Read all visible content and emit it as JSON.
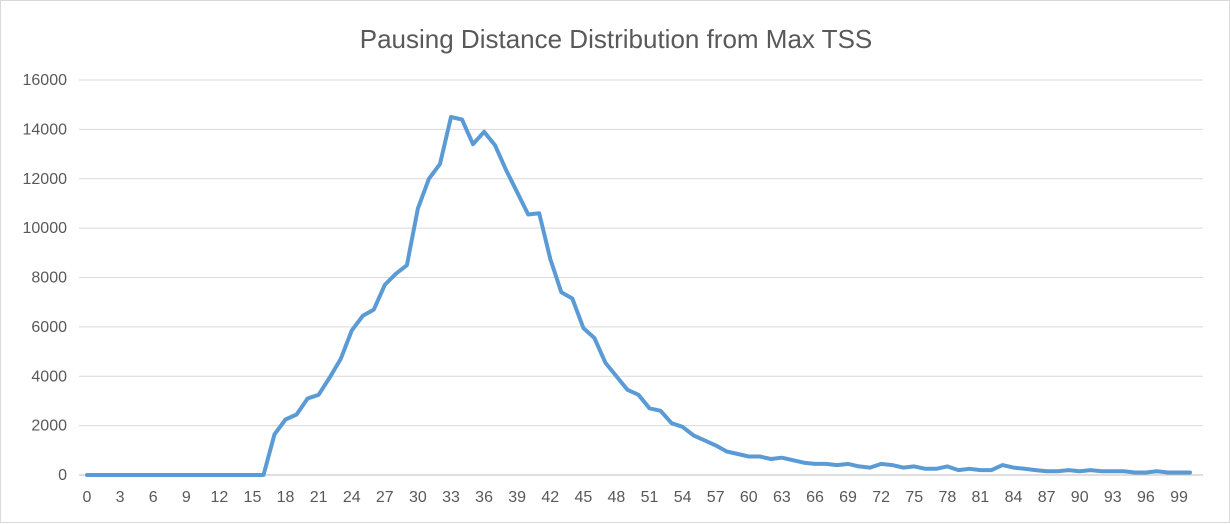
{
  "chart_data": {
    "type": "line",
    "title": "Pausing Distance Distribution from Max TSS",
    "xlabel": "",
    "ylabel": "",
    "ylim": [
      0,
      16000
    ],
    "yticks": [
      0,
      2000,
      4000,
      6000,
      8000,
      10000,
      12000,
      14000,
      16000
    ],
    "xlim": [
      0,
      100
    ],
    "xticks": [
      0,
      3,
      6,
      9,
      12,
      15,
      18,
      21,
      24,
      27,
      30,
      33,
      36,
      39,
      42,
      45,
      48,
      51,
      54,
      57,
      60,
      63,
      66,
      69,
      72,
      75,
      78,
      81,
      84,
      87,
      90,
      93,
      96,
      99
    ],
    "grid": true,
    "legend": "none",
    "color": "#5b9bd5",
    "x": [
      0,
      1,
      2,
      3,
      4,
      5,
      6,
      7,
      8,
      9,
      10,
      11,
      12,
      13,
      14,
      15,
      16,
      17,
      18,
      19,
      20,
      21,
      22,
      23,
      24,
      25,
      26,
      27,
      28,
      29,
      30,
      31,
      32,
      33,
      34,
      35,
      36,
      37,
      38,
      39,
      40,
      41,
      42,
      43,
      44,
      45,
      46,
      47,
      48,
      49,
      50,
      51,
      52,
      53,
      54,
      55,
      56,
      57,
      58,
      59,
      60,
      61,
      62,
      63,
      64,
      65,
      66,
      67,
      68,
      69,
      70,
      71,
      72,
      73,
      74,
      75,
      76,
      77,
      78,
      79,
      80,
      81,
      82,
      83,
      84,
      85,
      86,
      87,
      88,
      89,
      90,
      91,
      92,
      93,
      94,
      95,
      96,
      97,
      98,
      99,
      100
    ],
    "values": [
      0,
      0,
      0,
      0,
      0,
      0,
      0,
      0,
      0,
      0,
      0,
      0,
      0,
      0,
      0,
      0,
      0,
      1650,
      2250,
      2450,
      3100,
      3250,
      3950,
      4700,
      5850,
      6450,
      6700,
      7700,
      8150,
      8500,
      10800,
      12000,
      12600,
      14500,
      14400,
      13400,
      13900,
      13350,
      12350,
      11450,
      10550,
      10600,
      8750,
      7400,
      7150,
      5950,
      5550,
      4550,
      4000,
      3450,
      3250,
      2700,
      2600,
      2100,
      1950,
      1600,
      1400,
      1200,
      950,
      850,
      750,
      750,
      650,
      700,
      600,
      500,
      450,
      450,
      400,
      450,
      350,
      300,
      450,
      400,
      300,
      350,
      250,
      250,
      350,
      200,
      250,
      200,
      200,
      400,
      300,
      250,
      200,
      150,
      150,
      200,
      150,
      200,
      150,
      150,
      150,
      100,
      100,
      150,
      100,
      100,
      100
    ]
  }
}
